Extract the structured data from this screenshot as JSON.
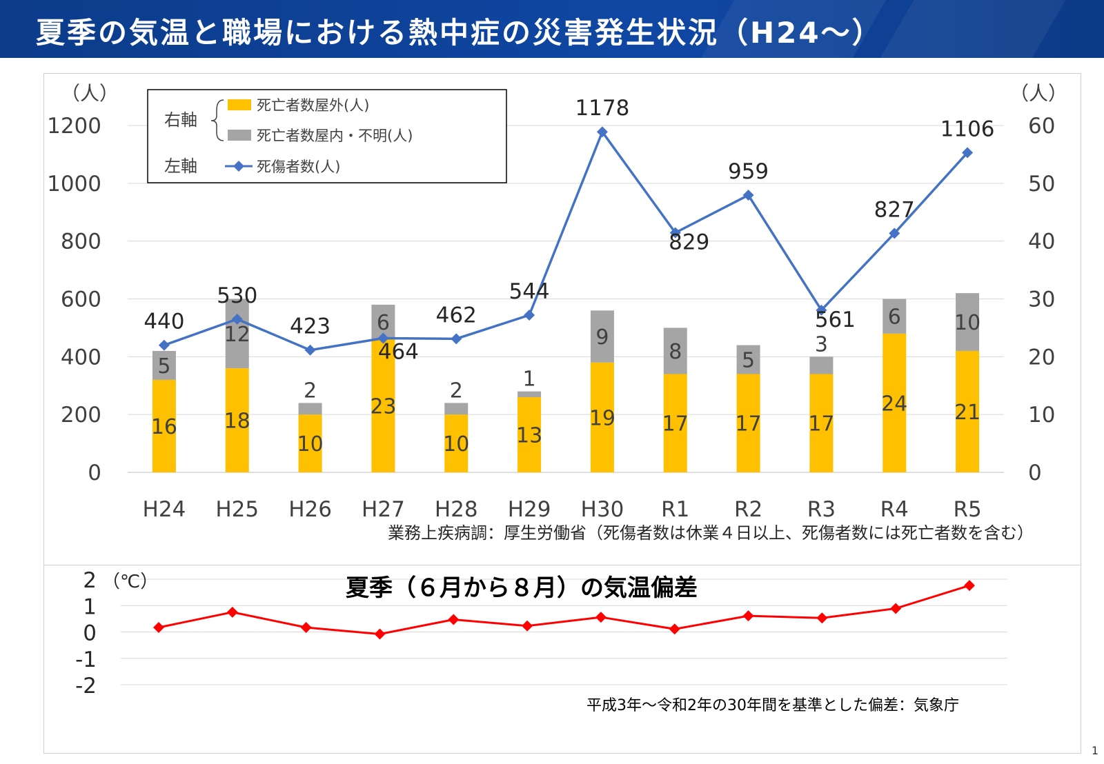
{
  "page": {
    "title": "夏季の気温と職場における熱中症の災害発生状況（H24～）",
    "page_number": "1",
    "colors": {
      "header": "#0f47a3",
      "outdoor_bar": "#ffc000",
      "indoor_bar": "#a5a5a5",
      "casualty_line": "#4472c4",
      "temperature_line": "#ff0000"
    }
  },
  "chart_data": [
    {
      "type": "bar+line",
      "categories": [
        "H24",
        "H25",
        "H26",
        "H27",
        "H28",
        "H29",
        "H30",
        "R1",
        "R2",
        "R3",
        "R4",
        "R5"
      ],
      "left_axis": {
        "unit_label": "（人）",
        "ylim": [
          0,
          1200
        ],
        "ticks": [
          "0",
          "200",
          "400",
          "600",
          "800",
          "1000",
          "1200"
        ]
      },
      "right_axis": {
        "unit_label": "（人）",
        "ylim": [
          0,
          60
        ],
        "ticks": [
          "0",
          "10",
          "20",
          "30",
          "40",
          "50",
          "60"
        ]
      },
      "series": [
        {
          "name": "死亡者数屋外(人)",
          "axis": "right",
          "kind": "stacked-bar",
          "values": [
            16,
            18,
            10,
            23,
            10,
            13,
            19,
            17,
            17,
            17,
            24,
            21
          ]
        },
        {
          "name": "死亡者数屋内・不明(人)",
          "axis": "right",
          "kind": "stacked-bar",
          "values": [
            5,
            12,
            2,
            6,
            2,
            1,
            9,
            8,
            5,
            3,
            6,
            10
          ]
        },
        {
          "name": "死傷者数(人)",
          "axis": "left",
          "kind": "line-marker",
          "values": [
            440,
            530,
            423,
            464,
            462,
            544,
            1178,
            829,
            959,
            561,
            827,
            1106
          ]
        }
      ],
      "legend": {
        "right_axis_label": "右軸",
        "left_axis_label": "左軸",
        "items": [
          "死亡者数屋外(人)",
          "死亡者数屋内・不明(人)",
          "死傷者数(人)"
        ]
      },
      "source_note": "業務上疾病調：厚生労働省（死傷者数は休業４日以上、死傷者数には死亡者数を含む）",
      "grid": true
    },
    {
      "type": "line",
      "title": "夏季（６月から８月）の気温偏差",
      "unit_label": "（℃）",
      "categories": [
        "H24",
        "H25",
        "H26",
        "H27",
        "H28",
        "H29",
        "H30",
        "R1",
        "R2",
        "R3",
        "R4",
        "R5"
      ],
      "ylim": [
        -2,
        2
      ],
      "ticks": [
        "2",
        "1",
        "0",
        "-1",
        "-2"
      ],
      "series": [
        {
          "values": [
            0.17,
            0.75,
            0.17,
            -0.08,
            0.47,
            0.23,
            0.56,
            0.11,
            0.61,
            0.53,
            0.89,
            1.76
          ]
        }
      ],
      "source_note": "平成3年～令和2年の30年間を基準とした偏差：気象庁",
      "grid": true
    }
  ]
}
